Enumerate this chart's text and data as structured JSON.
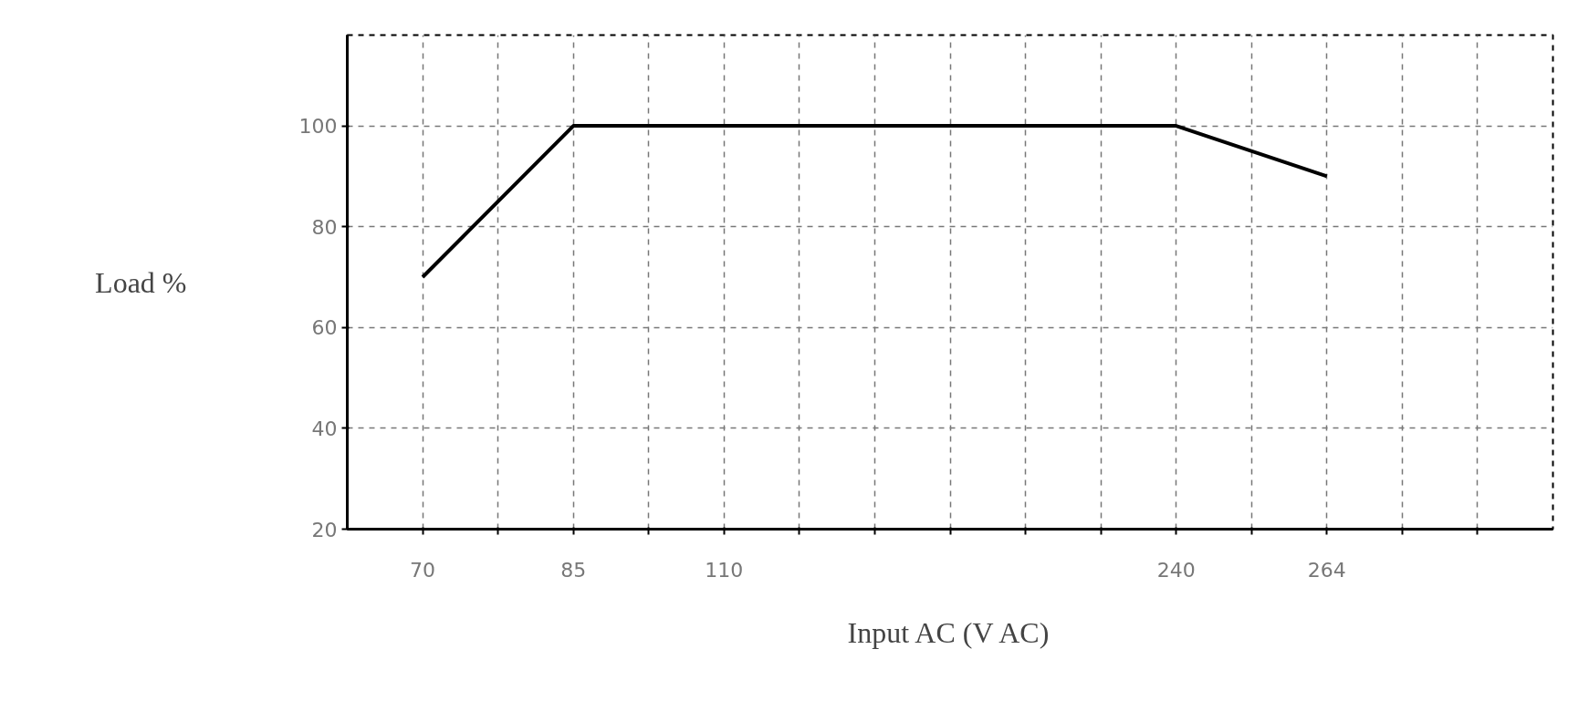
{
  "chart_data": {
    "type": "line",
    "xlabel": "Input AC (V AC)",
    "ylabel": "Load %",
    "categories": [
      "70",
      null,
      "85",
      null,
      "110",
      null,
      null,
      null,
      null,
      null,
      "240",
      null,
      "264",
      null,
      null
    ],
    "series": [
      {
        "color": "#000000",
        "x": [
          "70",
          "85",
          "240",
          "264"
        ],
        "values": [
          70,
          100,
          100,
          90
        ]
      }
    ],
    "ylim": [
      20,
      118
    ],
    "yticks": [
      20,
      40,
      60,
      80,
      100
    ],
    "grid": true,
    "marker": "none",
    "line_style": "solid"
  }
}
